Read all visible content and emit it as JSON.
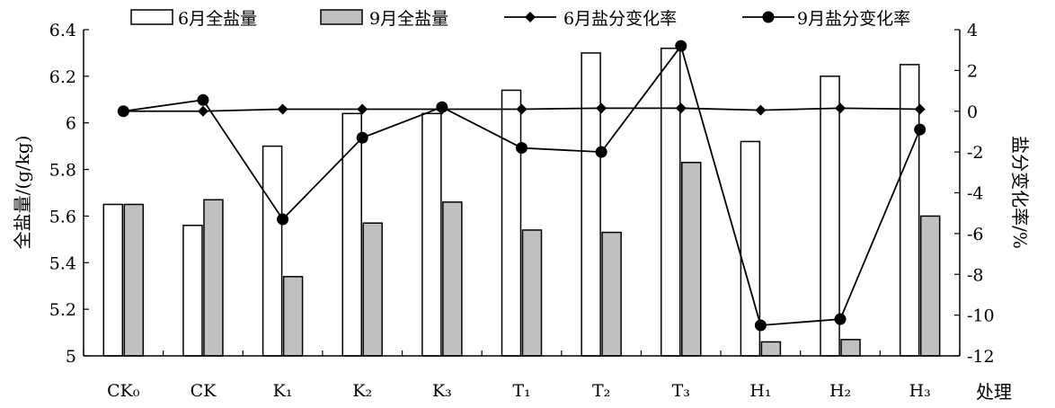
{
  "chart_data": {
    "type": "bar",
    "categories": [
      "CK₀",
      "CK",
      "K₁",
      "K₂",
      "K₃",
      "T₁",
      "T₂",
      "T₃",
      "H₁",
      "H₂",
      "H₃"
    ],
    "xlabel": "处理",
    "ylabel": "全盐量/(g/kg)",
    "y2label": "盐分变化率/%",
    "ylim": [
      5,
      6.4
    ],
    "yticks": [
      "5",
      "5.2",
      "5.4",
      "5.6",
      "5.8",
      "6",
      "6.2",
      "6.4"
    ],
    "y2lim": [
      -12,
      4
    ],
    "y2ticks": [
      "-12",
      "-10",
      "-8",
      "-6",
      "-4",
      "-2",
      "0",
      "2",
      "4"
    ],
    "legend_position": "top",
    "series": [
      {
        "name": "6月全盐量",
        "kind": "bar",
        "axis": "left",
        "color": "#ffffff",
        "values": [
          5.65,
          5.56,
          5.9,
          6.04,
          6.04,
          6.14,
          6.3,
          6.32,
          5.92,
          6.2,
          6.25
        ]
      },
      {
        "name": "9月全盐量",
        "kind": "bar",
        "axis": "left",
        "color": "#c0c0c0",
        "values": [
          5.65,
          5.67,
          5.34,
          5.57,
          5.66,
          5.54,
          5.53,
          5.83,
          5.06,
          5.07,
          5.6
        ]
      },
      {
        "name": "6月盐分变化率",
        "kind": "line",
        "marker": "diamond",
        "axis": "right",
        "color": "#000000",
        "values": [
          0,
          0,
          0.1,
          0.1,
          0.1,
          0.1,
          0.15,
          0.15,
          0.05,
          0.15,
          0.1
        ]
      },
      {
        "name": "9月盐分变化率",
        "kind": "line",
        "marker": "circle",
        "axis": "right",
        "color": "#000000",
        "values": [
          0,
          0.55,
          -5.3,
          -1.3,
          0.2,
          -1.8,
          -2.0,
          3.2,
          -10.5,
          -10.2,
          -0.9
        ]
      }
    ]
  }
}
